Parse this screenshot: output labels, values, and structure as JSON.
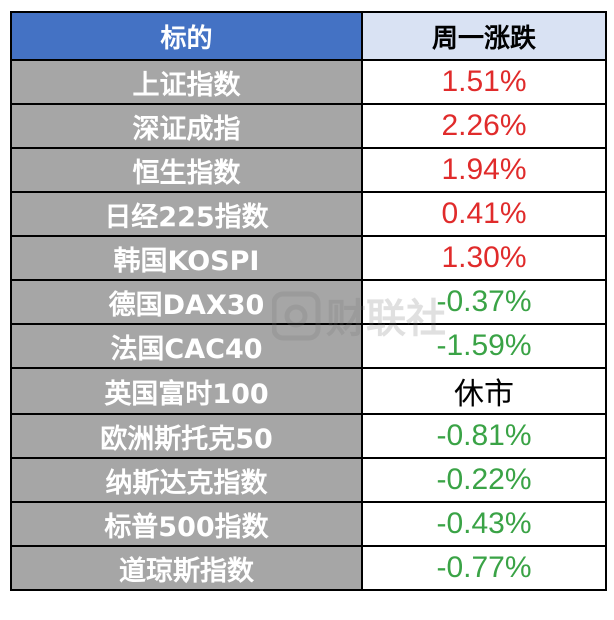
{
  "header": {
    "col1": "标的",
    "col2": "周一涨跌"
  },
  "rows": [
    {
      "name": "上证指数",
      "change": "1.51%",
      "dir": "up"
    },
    {
      "name": "深证成指",
      "change": "2.26%",
      "dir": "up"
    },
    {
      "name": "恒生指数",
      "change": "1.94%",
      "dir": "up"
    },
    {
      "name": "日经225指数",
      "change": "0.41%",
      "dir": "up"
    },
    {
      "name": "韩国KOSPI",
      "change": "1.30%",
      "dir": "up"
    },
    {
      "name": "德国DAX30",
      "change": "-0.37%",
      "dir": "down"
    },
    {
      "name": "法国CAC40",
      "change": "-1.59%",
      "dir": "down"
    },
    {
      "name": "英国富时100",
      "change": "休市",
      "dir": "flat"
    },
    {
      "name": "欧洲斯托克50",
      "change": "-0.81%",
      "dir": "down"
    },
    {
      "name": "纳斯达克指数",
      "change": "-0.22%",
      "dir": "down"
    },
    {
      "name": "标普500指数",
      "change": "-0.43%",
      "dir": "down"
    },
    {
      "name": "道琼斯指数",
      "change": "-0.77%",
      "dir": "down"
    }
  ],
  "watermark": {
    "text": "财联社"
  },
  "colors": {
    "header_left_bg": "#4472c4",
    "header_right_bg": "#d9e2f3",
    "name_cell_bg": "#a6a6a6",
    "up": "#e02b2b",
    "down": "#3aa346",
    "flat": "#000000"
  }
}
